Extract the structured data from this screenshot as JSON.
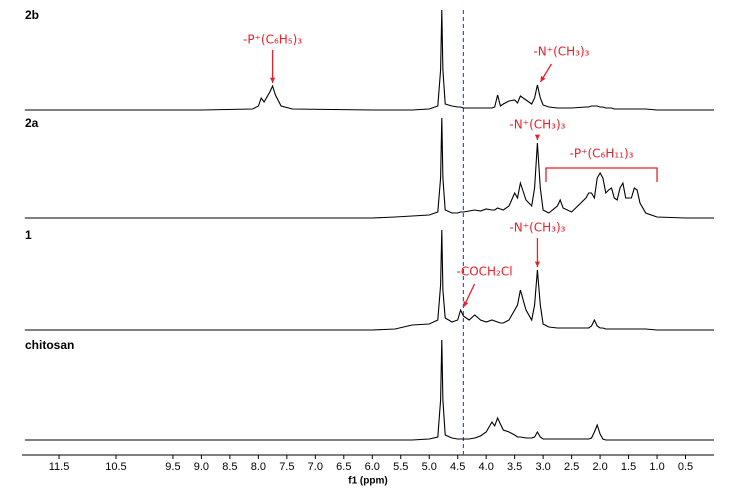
{
  "chart_data": {
    "type": "line",
    "xlabel": "f1 (ppm)",
    "xlim": [
      12.15,
      0
    ],
    "ylim": [
      0,
      100
    ],
    "xticks": [
      11.5,
      10.5,
      9.5,
      {
        "value": 9,
        "label": "9.0"
      },
      8.5,
      {
        "value": 8,
        "label": "8.0"
      },
      7.5,
      {
        "value": 7,
        "label": "7.0"
      },
      6.5,
      {
        "value": 6,
        "label": "6.0"
      },
      5.5,
      {
        "value": 5,
        "label": "5.0"
      },
      4.5,
      {
        "value": 4,
        "label": "4.0"
      },
      3.5,
      {
        "value": 3,
        "label": "3.0"
      },
      2.5,
      {
        "value": 2,
        "label": "2.0"
      },
      1.5,
      {
        "value": 1,
        "label": "1.0"
      },
      0.5
    ],
    "reference_line": 4.4,
    "x": [
      12.1,
      9.0,
      8.1,
      8.0,
      7.95,
      7.9,
      7.8,
      7.75,
      7.7,
      7.6,
      7.4,
      6.0,
      5.6,
      5.3,
      5.0,
      4.85,
      4.8,
      4.78,
      4.76,
      4.72,
      4.6,
      4.5,
      4.45,
      4.4,
      4.3,
      4.2,
      4.1,
      4.0,
      3.9,
      3.85,
      3.8,
      3.75,
      3.7,
      3.6,
      3.5,
      3.45,
      3.4,
      3.3,
      3.2,
      3.15,
      3.1,
      3.05,
      3.0,
      2.9,
      2.75,
      2.7,
      2.65,
      2.5,
      2.25,
      2.2,
      2.15,
      2.1,
      2.05,
      2.0,
      1.95,
      1.9,
      1.85,
      1.8,
      1.75,
      1.7,
      1.65,
      1.6,
      1.55,
      1.45,
      1.4,
      1.35,
      1.3,
      1.2,
      1.0,
      0.5,
      0.0
    ],
    "series": [
      {
        "name": "2b",
        "color": "#000000",
        "values": [
          0,
          0,
          1,
          4,
          12,
          8,
          18,
          24,
          15,
          4,
          1,
          0,
          0,
          0,
          1,
          4,
          40,
          100,
          40,
          6,
          4,
          3,
          3,
          2,
          2,
          2,
          2,
          2,
          2,
          3,
          15,
          4,
          6,
          9,
          10,
          7,
          14,
          10,
          6,
          12,
          25,
          12,
          5,
          3,
          2,
          2,
          2,
          2,
          3,
          3,
          4,
          4,
          4,
          3,
          3,
          2,
          2,
          2,
          1,
          1,
          1,
          1,
          1,
          1,
          1,
          1,
          1,
          1,
          0,
          0,
          0
        ],
        "annotations": [
          {
            "text": "-P⁺(C₆H₅)₃",
            "x": 7.75
          },
          {
            "text": "-N⁺(CH₃)₃",
            "x": 3.1
          }
        ]
      },
      {
        "name": "2a",
        "color": "#000000",
        "values": [
          0,
          0,
          0,
          0,
          0,
          0,
          0,
          0,
          0,
          0,
          0,
          0,
          1,
          2,
          3,
          6,
          40,
          100,
          40,
          8,
          5,
          5,
          6,
          6,
          7,
          8,
          7,
          9,
          8,
          8,
          10,
          9,
          8,
          12,
          25,
          20,
          35,
          18,
          12,
          30,
          75,
          30,
          8,
          5,
          12,
          18,
          10,
          6,
          20,
          25,
          25,
          20,
          40,
          45,
          40,
          25,
          28,
          30,
          20,
          18,
          30,
          35,
          20,
          20,
          30,
          28,
          15,
          5,
          1,
          0,
          0
        ],
        "annotations": [
          {
            "text": "-N⁺(CH₃)₃",
            "x": 3.1
          },
          {
            "text": "-P⁺(C₆H₁₁)₃",
            "range": [
              2.95,
              1.0
            ]
          }
        ]
      },
      {
        "name": "1",
        "color": "#000000",
        "values": [
          0,
          0,
          0,
          0,
          0,
          0,
          0,
          0,
          0,
          0,
          0,
          0,
          1,
          5,
          6,
          10,
          45,
          100,
          40,
          12,
          8,
          10,
          20,
          14,
          10,
          15,
          10,
          8,
          10,
          9,
          8,
          7,
          7,
          10,
          20,
          25,
          40,
          20,
          10,
          25,
          60,
          25,
          6,
          3,
          2,
          2,
          2,
          2,
          2,
          2,
          4,
          10,
          4,
          2,
          2,
          1,
          1,
          1,
          1,
          1,
          1,
          1,
          1,
          1,
          1,
          1,
          1,
          1,
          0,
          0,
          0
        ],
        "annotations": [
          {
            "text": "-N⁺(CH₃)₃",
            "x": 3.1
          },
          {
            "text": "-COCH₂Cl",
            "x": 4.45
          }
        ]
      },
      {
        "name": "chitosan",
        "color": "#000000",
        "values": [
          0,
          0,
          0,
          0,
          0,
          0,
          0,
          0,
          0,
          0,
          0,
          0,
          0,
          0,
          1,
          3,
          40,
          100,
          40,
          5,
          2,
          1,
          1,
          1,
          1,
          2,
          4,
          8,
          18,
          14,
          22,
          16,
          10,
          8,
          5,
          3,
          3,
          2,
          2,
          3,
          8,
          3,
          1,
          1,
          1,
          1,
          1,
          1,
          1,
          1,
          2,
          8,
          15,
          6,
          1,
          0,
          0,
          0,
          0,
          0,
          0,
          0,
          0,
          0,
          0,
          0,
          0,
          0,
          0,
          0,
          0
        ]
      }
    ]
  }
}
